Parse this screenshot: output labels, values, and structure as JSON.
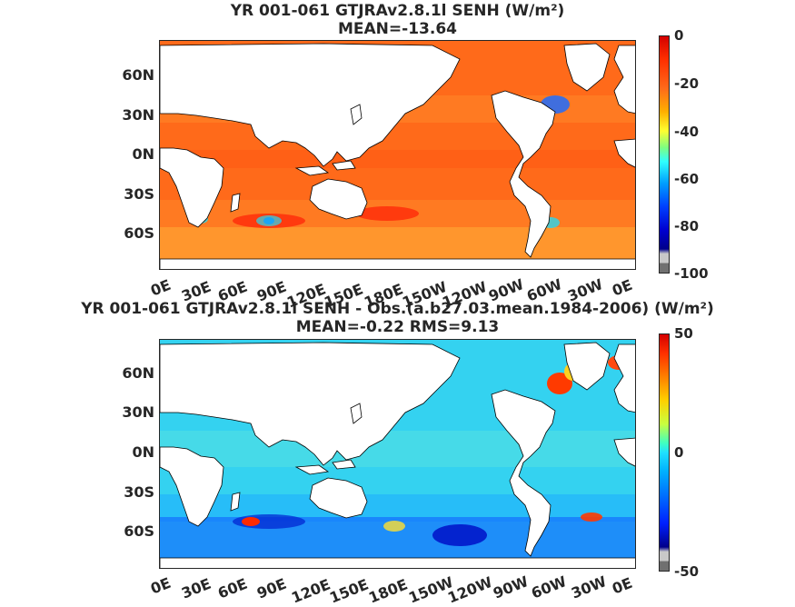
{
  "panels": [
    {
      "title_line1": "YR 001-061 GTJRAv2.8.1l  SENH (W/m²)",
      "title_line2": "MEAN=-13.64",
      "colorbar_ticks": [
        "0",
        "-20",
        "-40",
        "-60",
        "-80",
        "-100"
      ],
      "colorbar_range": [
        -100,
        0
      ]
    },
    {
      "title_line1": "YR 001-061 GTJRAv2.8.1l SENH - Obs.(a.b27.03.mean.1984-2006) (W/m²)",
      "title_line2": "MEAN=-0.22 RMS=9.13",
      "colorbar_ticks": [
        "50",
        "0",
        "-50"
      ],
      "colorbar_range": [
        -50,
        50
      ]
    }
  ],
  "lat_labels": [
    "60N",
    "30N",
    "0N",
    "30S",
    "60S"
  ],
  "lon_labels": [
    "0E",
    "30E",
    "60E",
    "90E",
    "120E",
    "150E",
    "180E",
    "150W",
    "120W",
    "90W",
    "60W",
    "30W",
    "0E"
  ],
  "colors": {
    "land": "#ffffff",
    "coast": "#000000",
    "panel1_ocean": "#ff6a1a",
    "panel2_ocean": "#34d2f0"
  }
}
